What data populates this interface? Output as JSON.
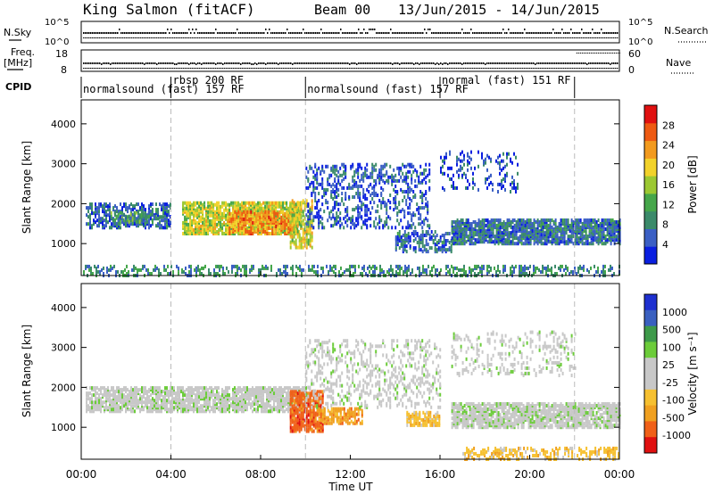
{
  "header": {
    "title": "King Salmon (fitACF)",
    "beam": "Beam 00",
    "date_range": "13/Jun/2015 - 14/Jun/2015"
  },
  "summary": {
    "nsky_label": "N.Sky",
    "nsky_ticks": [
      "10^5",
      "10^0"
    ],
    "nsearch_label": "N.Search",
    "nsearch_ticks": [
      "10^5",
      "10^0"
    ],
    "freq_label": "Freq.",
    "freq_unit": "[MHz]",
    "freq_ticks": [
      "18",
      "8"
    ],
    "nave_label": "Nave",
    "nave_ticks": [
      "60",
      "0"
    ],
    "cpid_label": "CPID",
    "cpid_segments": [
      {
        "label": "normalsound (fast) 157 RF",
        "start_h": 0,
        "end_h": 4
      },
      {
        "label": "rbsp 200 RF",
        "start_h": 4,
        "end_h": 10
      },
      {
        "label": "normalsound (fast) 157 RF",
        "start_h": 10,
        "end_h": 16
      },
      {
        "label": "normal (fast) 151 RF",
        "start_h": 16,
        "end_h": 22
      }
    ]
  },
  "colors": {
    "power_scale": [
      "#0a1fe0",
      "#3b5fc4",
      "#3b8a6a",
      "#45a64a",
      "#9cc832",
      "#f2d22a",
      "#f29a1e",
      "#ee5a12",
      "#e01010"
    ],
    "velocity_scale": [
      "#e01010",
      "#f06018",
      "#f0a020",
      "#f6c030",
      "#c8c8c8",
      "#c8c8c8",
      "#6ccc3a",
      "#3e9a4a",
      "#3a60c0",
      "#1e30d0"
    ]
  },
  "chart_data": [
    {
      "type": "heatmap",
      "panel": "power",
      "ylabel": "Slant Range [km]",
      "yticks": [
        "1000",
        "2000",
        "3000",
        "4000"
      ],
      "ylim": [
        200,
        4600
      ],
      "xlim_hours": [
        0,
        24
      ],
      "colorbar": {
        "label": "Power [dB]",
        "ticks": [
          "4",
          "8",
          "12",
          "16",
          "20",
          "24",
          "28"
        ],
        "range": [
          0,
          32
        ]
      },
      "regions": [
        {
          "t0": 0.2,
          "t1": 4.0,
          "r0": 1400,
          "r1": 2000,
          "level": 6,
          "density": 0.45
        },
        {
          "t0": 1.3,
          "t1": 3.5,
          "r0": 1500,
          "r1": 1800,
          "level": 10,
          "density": 0.35
        },
        {
          "t0": 4.5,
          "t1": 9.8,
          "r0": 1250,
          "r1": 2050,
          "level": 17,
          "density": 0.75
        },
        {
          "t0": 6.5,
          "t1": 9.5,
          "r0": 1250,
          "r1": 1800,
          "level": 24,
          "density": 0.55
        },
        {
          "t0": 9.3,
          "t1": 10.3,
          "r0": 900,
          "r1": 2100,
          "level": 18,
          "density": 0.5
        },
        {
          "t0": 10.0,
          "t1": 15.5,
          "r0": 1400,
          "r1": 3000,
          "level": 5,
          "density": 0.25
        },
        {
          "t0": 14.0,
          "t1": 16.5,
          "r0": 800,
          "r1": 1300,
          "level": 6,
          "density": 0.35
        },
        {
          "t0": 16.5,
          "t1": 24.0,
          "r0": 1000,
          "r1": 1600,
          "level": 7,
          "density": 0.7
        },
        {
          "t0": 16.0,
          "t1": 19.5,
          "r0": 2300,
          "r1": 3300,
          "level": 5,
          "density": 0.15
        },
        {
          "t0": 0.0,
          "t1": 24.0,
          "r0": 200,
          "r1": 450,
          "level": 9,
          "density": 0.3
        }
      ]
    },
    {
      "type": "heatmap",
      "panel": "velocity",
      "ylabel": "Slant Range [km]",
      "yticks": [
        "1000",
        "2000",
        "3000",
        "4000"
      ],
      "ylim": [
        200,
        4600
      ],
      "xlim_hours": [
        0,
        24
      ],
      "xlabel": "Time UT",
      "xticks": [
        "00:00",
        "04:00",
        "08:00",
        "12:00",
        "16:00",
        "20:00",
        "00:00"
      ],
      "colorbar": {
        "label": "Velocity [m s⁻¹]",
        "ticks": [
          "1000",
          "500",
          "100",
          "25",
          "-25",
          "-100",
          "-500",
          "-1000"
        ]
      },
      "regions": [
        {
          "t0": 0.2,
          "t1": 10.0,
          "r0": 1400,
          "r1": 2000,
          "vclass": 5,
          "density": 0.65
        },
        {
          "t0": 9.3,
          "t1": 10.8,
          "r0": 900,
          "r1": 1900,
          "vclass": 1,
          "density": 0.7
        },
        {
          "t0": 10.5,
          "t1": 12.5,
          "r0": 1100,
          "r1": 1500,
          "vclass": 2,
          "density": 0.55
        },
        {
          "t0": 14.5,
          "t1": 16.0,
          "r0": 1050,
          "r1": 1400,
          "vclass": 3,
          "density": 0.6
        },
        {
          "t0": 10.0,
          "t1": 16.0,
          "r0": 1500,
          "r1": 3200,
          "vclass": 5,
          "density": 0.2
        },
        {
          "t0": 16.5,
          "t1": 24.0,
          "r0": 1000,
          "r1": 1600,
          "vclass": 5,
          "density": 0.7
        },
        {
          "t0": 16.5,
          "t1": 22.0,
          "r0": 2300,
          "r1": 3400,
          "vclass": 5,
          "density": 0.15
        },
        {
          "t0": 17.0,
          "t1": 24.0,
          "r0": 200,
          "r1": 500,
          "vclass": 3,
          "density": 0.3
        }
      ]
    }
  ],
  "axis_labels": {
    "xticks": [
      "00:00",
      "04:00",
      "08:00",
      "12:00",
      "16:00",
      "20:00",
      "00:00"
    ],
    "xlabel": "Time UT"
  }
}
